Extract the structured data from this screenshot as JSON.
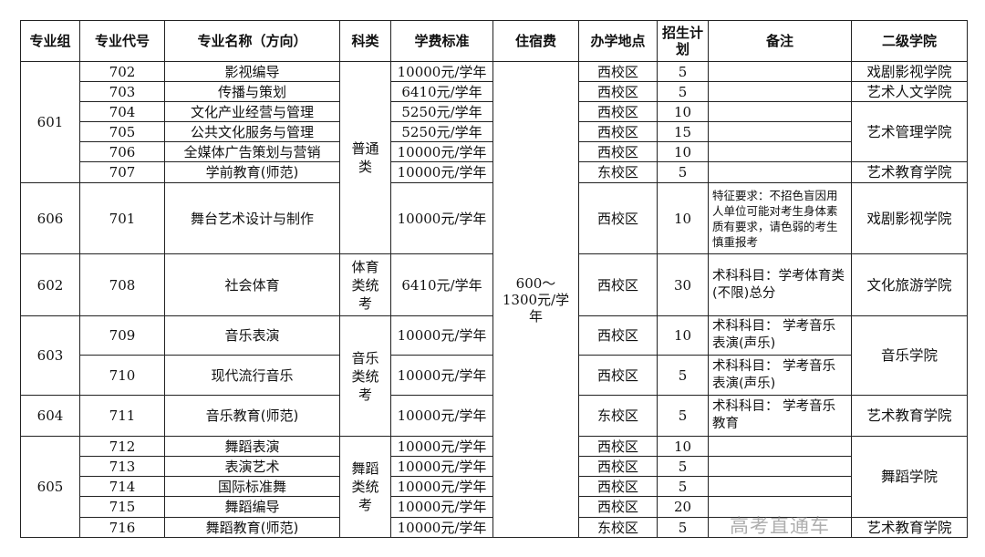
{
  "headers": [
    "专业组",
    "专业代号",
    "专业名称（方向）",
    "科类",
    "学费标准",
    "住宿费",
    "办学地点",
    "招生计划",
    "备注",
    "二级学院"
  ],
  "accommodation": "600～1300元/学年",
  "rows": [
    {
      "group": "601",
      "code": "702",
      "name": "影视编导",
      "fee": "10000元/学年",
      "campus": "西校区",
      "plan": "5",
      "note": "",
      "college": "戏剧影视学院"
    },
    {
      "group": "601",
      "code": "703",
      "name": "传播与策划",
      "fee": "6410元/学年",
      "campus": "西校区",
      "plan": "5",
      "note": "",
      "college": "艺术人文学院"
    },
    {
      "group": "601",
      "code": "704",
      "name": "文化产业经营与管理",
      "fee": "5250元/学年",
      "campus": "西校区",
      "plan": "10",
      "note": "",
      "college": "艺术管理学院"
    },
    {
      "group": "601",
      "code": "705",
      "name": "公共文化服务与管理",
      "fee": "5250元/学年",
      "campus": "西校区",
      "plan": "15",
      "note": "",
      "college": "艺术管理学院"
    },
    {
      "group": "601",
      "code": "706",
      "name": "全媒体广告策划与营销",
      "fee": "10000元/学年",
      "campus": "西校区",
      "plan": "10",
      "note": "",
      "college": "艺术管理学院"
    },
    {
      "group": "601",
      "code": "707",
      "name": "学前教育(师范)",
      "fee": "10000元/学年",
      "campus": "东校区",
      "plan": "5",
      "note": "",
      "college": "艺术教育学院"
    },
    {
      "group": "606",
      "code": "701",
      "name": "舞台艺术设计与制作",
      "fee": "10000元/学年",
      "campus": "西校区",
      "plan": "10",
      "note": "特征要求：不招色盲因用人单位可能对考生身体素质有要求，请色弱的考生慎重报考",
      "college": "戏剧影视学院"
    },
    {
      "group": "602",
      "code": "708",
      "name": "社会体育",
      "fee": "6410元/学年",
      "campus": "西校区",
      "plan": "30",
      "note": "术科科目：学考体育类(不限)总分",
      "college": "文化旅游学院"
    },
    {
      "group": "603",
      "code": "709",
      "name": "音乐表演",
      "fee": "10000元/学年",
      "campus": "西校区",
      "plan": "10",
      "note": "术科科目： 学考音乐表演(声乐)",
      "college": "音乐学院"
    },
    {
      "group": "603",
      "code": "710",
      "name": "现代流行音乐",
      "fee": "10000元/学年",
      "campus": "西校区",
      "plan": "5",
      "note": "术科科目： 学考音乐表演(声乐)",
      "college": "音乐学院"
    },
    {
      "group": "604",
      "code": "711",
      "name": "音乐教育(师范)",
      "fee": "10000元/学年",
      "campus": "东校区",
      "plan": "5",
      "note": "术科科目： 学考音乐教育",
      "college": "艺术教育学院"
    },
    {
      "group": "605",
      "code": "712",
      "name": "舞蹈表演",
      "fee": "10000元/学年",
      "campus": "西校区",
      "plan": "10",
      "note": "",
      "college": "舞蹈学院"
    },
    {
      "group": "605",
      "code": "713",
      "name": "表演艺术",
      "fee": "10000元/学年",
      "campus": "西校区",
      "plan": "5",
      "note": "",
      "college": "舞蹈学院"
    },
    {
      "group": "605",
      "code": "714",
      "name": "国际标准舞",
      "fee": "10000元/学年",
      "campus": "西校区",
      "plan": "5",
      "note": "",
      "college": "舞蹈学院"
    },
    {
      "group": "605",
      "code": "715",
      "name": "舞蹈编导",
      "fee": "10000元/学年",
      "campus": "西校区",
      "plan": "20",
      "note": "",
      "college": "舞蹈学院"
    },
    {
      "group": "605",
      "code": "716",
      "name": "舞蹈教育(师范)",
      "fee": "10000元/学年",
      "campus": "东校区",
      "plan": "5",
      "note": "",
      "college": "艺术教育学院"
    }
  ],
  "categories": [
    {
      "label": "普通类",
      "start": 0,
      "span": 7
    },
    {
      "label": "体育类统考",
      "start": 7,
      "span": 1
    },
    {
      "label": "音乐类统考",
      "start": 8,
      "span": 3
    },
    {
      "label": "舞蹈类统考",
      "start": 11,
      "span": 5
    }
  ],
  "watermark": "高考直通车"
}
